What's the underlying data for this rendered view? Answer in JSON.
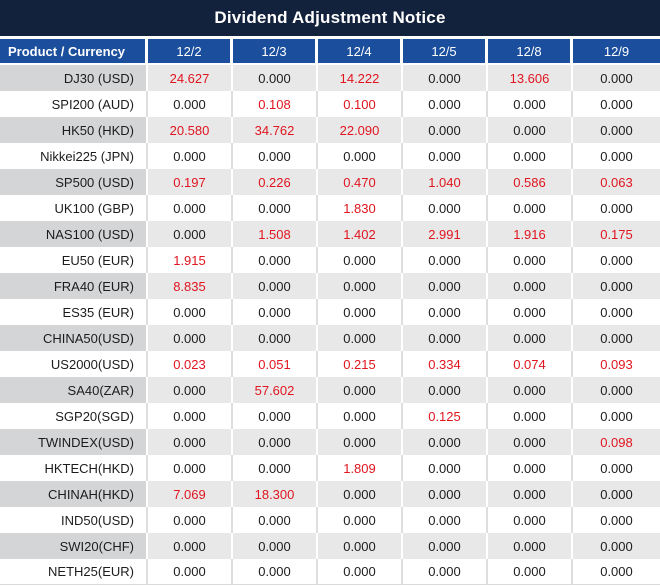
{
  "title": "Dividend Adjustment Notice",
  "colors": {
    "title_bar_bg": "#12213c",
    "header_bg": "#1b4f9e",
    "header_text": "#ffffff",
    "shaded_row_bg": "#e8e8e8",
    "shaded_product_bg": "#d4d5d7",
    "nonzero_value_color": "#e0151f",
    "zero_value_color": "#1c1c1c"
  },
  "table": {
    "product_header": "Product / Currency",
    "date_headers": [
      "12/2",
      "12/3",
      "12/4",
      "12/5",
      "12/8",
      "12/9"
    ],
    "rows": [
      {
        "product": "DJ30 (USD)",
        "values": [
          "24.627",
          "0.000",
          "14.222",
          "0.000",
          "13.606",
          "0.000"
        ]
      },
      {
        "product": "SPI200 (AUD)",
        "values": [
          "0.000",
          "0.108",
          "0.100",
          "0.000",
          "0.000",
          "0.000"
        ]
      },
      {
        "product": "HK50 (HKD)",
        "values": [
          "20.580",
          "34.762",
          "22.090",
          "0.000",
          "0.000",
          "0.000"
        ]
      },
      {
        "product": "Nikkei225 (JPN)",
        "values": [
          "0.000",
          "0.000",
          "0.000",
          "0.000",
          "0.000",
          "0.000"
        ]
      },
      {
        "product": "SP500 (USD)",
        "values": [
          "0.197",
          "0.226",
          "0.470",
          "1.040",
          "0.586",
          "0.063"
        ]
      },
      {
        "product": "UK100 (GBP)",
        "values": [
          "0.000",
          "0.000",
          "1.830",
          "0.000",
          "0.000",
          "0.000"
        ]
      },
      {
        "product": "NAS100 (USD)",
        "values": [
          "0.000",
          "1.508",
          "1.402",
          "2.991",
          "1.916",
          "0.175"
        ]
      },
      {
        "product": "EU50 (EUR)",
        "values": [
          "1.915",
          "0.000",
          "0.000",
          "0.000",
          "0.000",
          "0.000"
        ]
      },
      {
        "product": "FRA40 (EUR)",
        "values": [
          "8.835",
          "0.000",
          "0.000",
          "0.000",
          "0.000",
          "0.000"
        ]
      },
      {
        "product": "ES35 (EUR)",
        "values": [
          "0.000",
          "0.000",
          "0.000",
          "0.000",
          "0.000",
          "0.000"
        ]
      },
      {
        "product": "CHINA50(USD)",
        "values": [
          "0.000",
          "0.000",
          "0.000",
          "0.000",
          "0.000",
          "0.000"
        ]
      },
      {
        "product": "US2000(USD)",
        "values": [
          "0.023",
          "0.051",
          "0.215",
          "0.334",
          "0.074",
          "0.093"
        ]
      },
      {
        "product": "SA40(ZAR)",
        "values": [
          "0.000",
          "57.602",
          "0.000",
          "0.000",
          "0.000",
          "0.000"
        ]
      },
      {
        "product": "SGP20(SGD)",
        "values": [
          "0.000",
          "0.000",
          "0.000",
          "0.125",
          "0.000",
          "0.000"
        ]
      },
      {
        "product": "TWINDEX(USD)",
        "values": [
          "0.000",
          "0.000",
          "0.000",
          "0.000",
          "0.000",
          "0.098"
        ]
      },
      {
        "product": "HKTECH(HKD)",
        "values": [
          "0.000",
          "0.000",
          "1.809",
          "0.000",
          "0.000",
          "0.000"
        ]
      },
      {
        "product": "CHINAH(HKD)",
        "values": [
          "7.069",
          "18.300",
          "0.000",
          "0.000",
          "0.000",
          "0.000"
        ]
      },
      {
        "product": "IND50(USD)",
        "values": [
          "0.000",
          "0.000",
          "0.000",
          "0.000",
          "0.000",
          "0.000"
        ]
      },
      {
        "product": "SWI20(CHF)",
        "values": [
          "0.000",
          "0.000",
          "0.000",
          "0.000",
          "0.000",
          "0.000"
        ]
      },
      {
        "product": "NETH25(EUR)",
        "values": [
          "0.000",
          "0.000",
          "0.000",
          "0.000",
          "0.000",
          "0.000"
        ]
      }
    ]
  }
}
